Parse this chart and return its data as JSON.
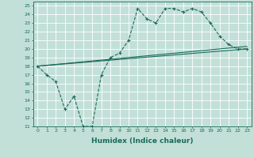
{
  "xlabel": "Humidex (Indice chaleur)",
  "bg_color": "#c2e0d8",
  "line_color": "#1a6b5a",
  "xlim": [
    -0.5,
    23.5
  ],
  "ylim": [
    11,
    25.5
  ],
  "yticks": [
    11,
    12,
    13,
    14,
    15,
    16,
    17,
    18,
    19,
    20,
    21,
    22,
    23,
    24,
    25
  ],
  "xticks": [
    0,
    1,
    2,
    3,
    4,
    5,
    6,
    7,
    8,
    9,
    10,
    11,
    12,
    13,
    14,
    15,
    16,
    17,
    18,
    19,
    20,
    21,
    22,
    23
  ],
  "line1_x": [
    0,
    1,
    2,
    3,
    4,
    5,
    6,
    7,
    8,
    9,
    10,
    11,
    12,
    13,
    14,
    15,
    16,
    17,
    18,
    19,
    20,
    21,
    22,
    23
  ],
  "line1_y": [
    18,
    17,
    16.2,
    13,
    14.5,
    11,
    11,
    17,
    19,
    19.5,
    21,
    24.7,
    23.5,
    23,
    24.7,
    24.7,
    24.3,
    24.7,
    24.3,
    23,
    21.5,
    20.5,
    20,
    20
  ],
  "line2_x": [
    0,
    23
  ],
  "line2_y": [
    18.0,
    20.0
  ],
  "line3_x": [
    0,
    23
  ],
  "line3_y": [
    18.0,
    20.3
  ]
}
